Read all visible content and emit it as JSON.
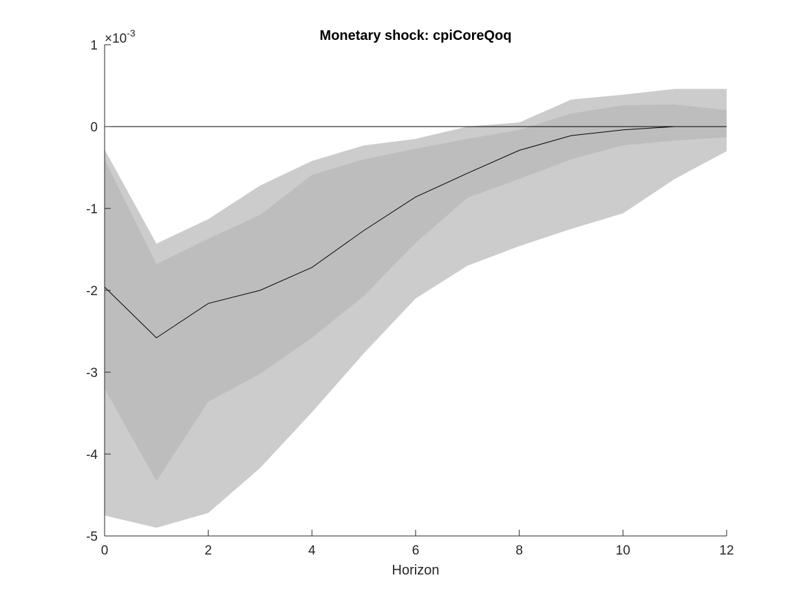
{
  "chart_data": {
    "type": "area",
    "title": "Monetary shock: cpiCoreQoq",
    "xlabel": "Horizon",
    "ylabel": "",
    "y_exponent_label": "×10",
    "y_exponent_power": "-3",
    "xlim": [
      0,
      12
    ],
    "ylim": [
      -5,
      1
    ],
    "x_ticks": [
      0,
      2,
      4,
      6,
      8,
      10,
      12
    ],
    "y_ticks": [
      -5,
      -4,
      -3,
      -2,
      -1,
      0,
      1
    ],
    "grid": false,
    "legend": "none",
    "x": [
      0,
      1,
      2,
      3,
      4,
      5,
      6,
      7,
      8,
      9,
      10,
      11,
      12
    ],
    "series": [
      {
        "kind": "band",
        "color": "#cccccc",
        "upper": [
          -0.28,
          -1.43,
          -1.13,
          -0.72,
          -0.42,
          -0.23,
          -0.15,
          0.0,
          0.05,
          0.33,
          0.39,
          0.46,
          0.46
        ],
        "lower": [
          -4.75,
          -4.9,
          -4.72,
          -4.17,
          -3.49,
          -2.77,
          -2.1,
          -1.7,
          -1.46,
          -1.25,
          -1.06,
          -0.64,
          -0.3
        ]
      },
      {
        "kind": "band",
        "color": "#bdbdbd",
        "upper": [
          -0.4,
          -1.68,
          -1.37,
          -1.08,
          -0.59,
          -0.4,
          -0.27,
          -0.15,
          -0.04,
          0.16,
          0.26,
          0.27,
          0.2
        ],
        "lower": [
          -3.2,
          -4.33,
          -3.36,
          -3.02,
          -2.58,
          -2.07,
          -1.42,
          -0.87,
          -0.64,
          -0.4,
          -0.23,
          -0.17,
          -0.13
        ]
      },
      {
        "kind": "line",
        "color": "#000000",
        "values": [
          -1.96,
          -2.58,
          -2.16,
          -2.0,
          -1.72,
          -1.27,
          -0.86,
          -0.57,
          -0.29,
          -0.11,
          -0.04,
          0.0,
          0.0
        ]
      },
      {
        "kind": "line",
        "color": "#000000",
        "values": [
          0,
          0,
          0,
          0,
          0,
          0,
          0,
          0,
          0,
          0,
          0,
          0,
          0
        ]
      }
    ]
  }
}
